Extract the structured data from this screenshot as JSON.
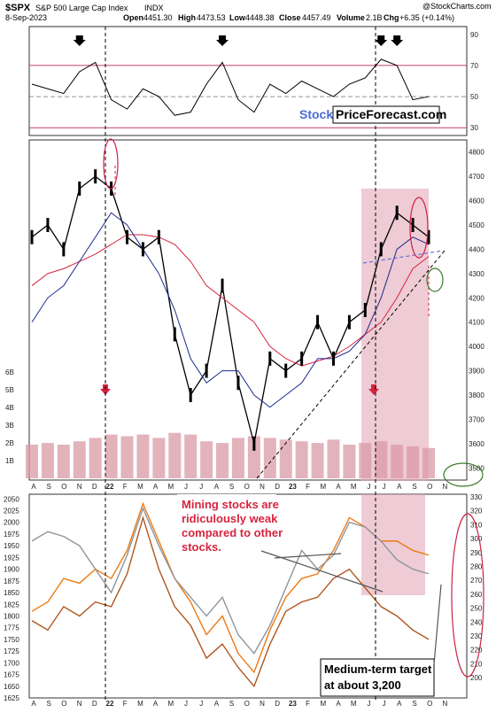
{
  "header": {
    "ticker": "$SPX",
    "name": "S&P 500 Large Cap Index",
    "exchange": "INDX",
    "date": "8-Sep-2023",
    "open_label": "Open",
    "open": "4451.30",
    "high_label": "High",
    "high": "4473.53",
    "low_label": "Low",
    "low": "4448.38",
    "close_label": "Close",
    "close": "4457.49",
    "volume_label": "Volume",
    "volume": "2.1B",
    "chg_label": "Chg",
    "chg": "+6.35 (+0.14%)",
    "credit": "@StockCharts.com"
  },
  "watermark": {
    "part1": "Stock",
    "part2": "PriceForecast.com"
  },
  "annotations": {
    "mining_note": [
      "Mining stocks are",
      "ridiculously weak",
      "compared to other",
      "stocks."
    ],
    "target_note": [
      "Medium-term target",
      "at about 3,200"
    ]
  },
  "chart_data": [
    {
      "type": "line",
      "name": "rsi-panel",
      "ylim": [
        25,
        95
      ],
      "yticks": [
        "90",
        "70",
        "50",
        "30"
      ],
      "reference_lines": [
        70,
        50,
        30
      ],
      "x": [
        "Aug-21",
        "Sep-21",
        "Oct-21",
        "Nov-21",
        "Dec-21",
        "Jan-22",
        "Feb-22",
        "Mar-22",
        "Apr-22",
        "May-22",
        "Jun-22",
        "Jul-22",
        "Aug-22",
        "Sep-22",
        "Oct-22",
        "Nov-22",
        "Dec-22",
        "Jan-23",
        "Feb-23",
        "Mar-23",
        "Apr-23",
        "May-23",
        "Jun-23",
        "Jul-23",
        "Aug-23",
        "Sep-23"
      ],
      "values": [
        58,
        55,
        52,
        66,
        72,
        48,
        42,
        55,
        50,
        38,
        40,
        58,
        72,
        48,
        40,
        58,
        52,
        60,
        55,
        50,
        58,
        62,
        74,
        70,
        48,
        50
      ],
      "markers": [
        "Nov-21",
        "Aug-22",
        "Jun-23",
        "Jul-23"
      ]
    },
    {
      "type": "candlestick",
      "name": "price-panel",
      "ylim": [
        3450,
        4850
      ],
      "yticks": [
        "4800",
        "4700",
        "4600",
        "4500",
        "4400",
        "4300",
        "4200",
        "4100",
        "4000",
        "3900",
        "3800",
        "3700",
        "3600",
        "3500"
      ],
      "volume_ticks": [
        "6B",
        "5B",
        "4B",
        "3B",
        "2B",
        "1B"
      ],
      "x_labels": [
        "A",
        "S",
        "O",
        "N",
        "D",
        "22",
        "F",
        "M",
        "A",
        "M",
        "J",
        "J",
        "A",
        "S",
        "O",
        "N",
        "D",
        "23",
        "F",
        "M",
        "A",
        "M",
        "J",
        "J",
        "A",
        "S",
        "O",
        "N"
      ],
      "x": [
        "Aug-21",
        "Sep-21",
        "Oct-21",
        "Nov-21",
        "Dec-21",
        "Jan-22",
        "Feb-22",
        "Mar-22",
        "Apr-22",
        "May-22",
        "Jun-22",
        "Jul-22",
        "Aug-22",
        "Sep-22",
        "Oct-22",
        "Nov-22",
        "Dec-22",
        "Jan-23",
        "Feb-23",
        "Mar-23",
        "Apr-23",
        "May-23",
        "Jun-23",
        "Jul-23",
        "Aug-23",
        "Sep-23"
      ],
      "series": [
        {
          "values": [
            4450,
            4500,
            4400,
            4650,
            4700,
            4650,
            4450,
            4400,
            4450,
            4050,
            3800,
            3900,
            4250,
            3850,
            3600,
            3950,
            3900,
            3950,
            4100,
            3950,
            4100,
            4150,
            4400,
            4550,
            4500,
            4450
          ]
        },
        {
          "values": [
            4250,
            4300,
            4320,
            4350,
            4380,
            4420,
            4460,
            4460,
            4450,
            4420,
            4350,
            4250,
            4200,
            4150,
            4100,
            4000,
            3950,
            3920,
            3940,
            3960,
            4000,
            4050,
            4100,
            4200,
            4320,
            4370
          ]
        },
        {
          "values": [
            4100,
            4200,
            4250,
            4350,
            4450,
            4550,
            4500,
            4400,
            4300,
            4150,
            3950,
            3850,
            3900,
            3900,
            3800,
            3750,
            3800,
            3850,
            3950,
            3950,
            3980,
            4050,
            4200,
            4400,
            4450,
            4420
          ]
        }
      ],
      "volume_b": [
        2.0,
        2.1,
        2.0,
        2.2,
        2.4,
        2.6,
        2.5,
        2.6,
        2.4,
        2.7,
        2.6,
        2.2,
        2.1,
        2.4,
        2.5,
        2.4,
        2.3,
        2.2,
        2.1,
        2.3,
        2.0,
        2.1,
        2.2,
        2.0,
        1.9,
        1.8
      ],
      "markers": [
        "Jan-22",
        "Jun-23"
      ]
    },
    {
      "type": "line",
      "name": "mining-panel",
      "ylim": [
        1625,
        2060
      ],
      "yticks_left": [
        "2050",
        "2025",
        "2000",
        "1975",
        "1950",
        "1925",
        "1900",
        "1875",
        "1850",
        "1825",
        "1800",
        "1775",
        "1750",
        "1725",
        "1700",
        "1675",
        "1650",
        "1625"
      ],
      "yticks_right": [
        "330",
        "320",
        "310",
        "300",
        "290",
        "280",
        "270",
        "260",
        "250",
        "240",
        "230",
        "220",
        "210",
        "200"
      ],
      "x_labels": [
        "A",
        "S",
        "O",
        "N",
        "D",
        "22",
        "F",
        "M",
        "A",
        "M",
        "J",
        "J",
        "A",
        "S",
        "O",
        "N",
        "D",
        "23",
        "F",
        "M",
        "A",
        "M",
        "J",
        "J",
        "A",
        "S",
        "O",
        "N"
      ],
      "x": [
        "Aug-21",
        "Sep-21",
        "Oct-21",
        "Nov-21",
        "Dec-21",
        "Jan-22",
        "Feb-22",
        "Mar-22",
        "Apr-22",
        "May-22",
        "Jun-22",
        "Jul-22",
        "Aug-22",
        "Sep-22",
        "Oct-22",
        "Nov-22",
        "Dec-22",
        "Jan-23",
        "Feb-23",
        "Mar-23",
        "Apr-23",
        "May-23",
        "Jun-23",
        "Jul-23",
        "Aug-23",
        "Sep-23"
      ],
      "series": [
        {
          "values": [
            1810,
            1830,
            1880,
            1870,
            1900,
            1880,
            1940,
            2040,
            1960,
            1880,
            1830,
            1760,
            1800,
            1720,
            1680,
            1770,
            1840,
            1880,
            1890,
            1940,
            2010,
            1990,
            1960,
            1960,
            1940,
            1930
          ]
        },
        {
          "values": [
            1790,
            1770,
            1820,
            1800,
            1830,
            1820,
            1890,
            2010,
            1900,
            1820,
            1780,
            1710,
            1740,
            1690,
            1650,
            1740,
            1810,
            1830,
            1840,
            1880,
            1900,
            1860,
            1820,
            1800,
            1770,
            1750
          ]
        },
        {
          "values": [
            1960,
            1980,
            1970,
            1950,
            1900,
            1850,
            1930,
            2030,
            1950,
            1880,
            1840,
            1800,
            1840,
            1760,
            1720,
            1780,
            1860,
            1940,
            1900,
            1930,
            2000,
            1990,
            1960,
            1920,
            1900,
            1890
          ]
        }
      ]
    }
  ]
}
